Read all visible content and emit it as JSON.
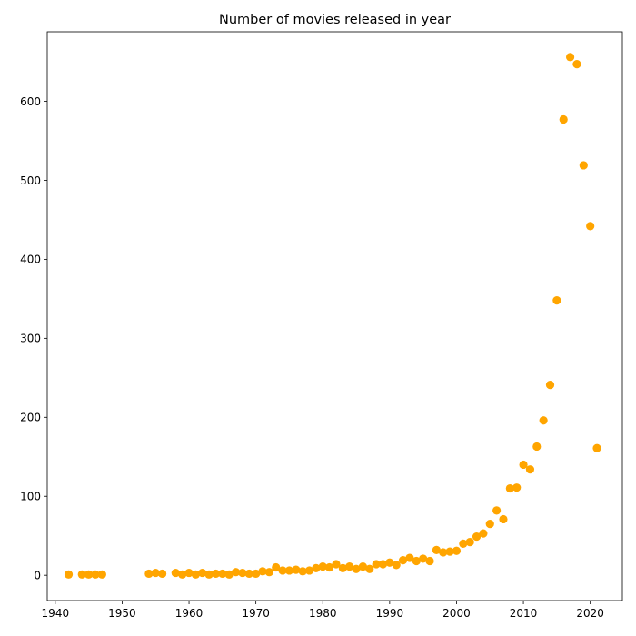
{
  "chart_data": {
    "type": "scatter",
    "title": "Number of movies released in year",
    "xlabel": "",
    "ylabel": "",
    "xlim": [
      1938.8,
      2024.8
    ],
    "ylim": [
      -32,
      688
    ],
    "x_ticks": [
      1940,
      1950,
      1960,
      1970,
      1980,
      1990,
      2000,
      2010,
      2020
    ],
    "y_ticks": [
      0,
      100,
      200,
      300,
      400,
      500,
      600
    ],
    "grid": false,
    "legend": "none",
    "marker_color": "#ffa500",
    "points": [
      [
        1942,
        1
      ],
      [
        1944,
        1
      ],
      [
        1945,
        1
      ],
      [
        1946,
        1
      ],
      [
        1947,
        1
      ],
      [
        1954,
        2
      ],
      [
        1955,
        3
      ],
      [
        1956,
        2
      ],
      [
        1958,
        3
      ],
      [
        1959,
        1
      ],
      [
        1960,
        3
      ],
      [
        1961,
        1
      ],
      [
        1962,
        3
      ],
      [
        1963,
        1
      ],
      [
        1964,
        2
      ],
      [
        1965,
        2
      ],
      [
        1966,
        1
      ],
      [
        1967,
        4
      ],
      [
        1968,
        3
      ],
      [
        1969,
        2
      ],
      [
        1970,
        2
      ],
      [
        1971,
        5
      ],
      [
        1972,
        4
      ],
      [
        1973,
        10
      ],
      [
        1974,
        6
      ],
      [
        1975,
        6
      ],
      [
        1976,
        7
      ],
      [
        1977,
        5
      ],
      [
        1978,
        6
      ],
      [
        1979,
        9
      ],
      [
        1980,
        11
      ],
      [
        1981,
        10
      ],
      [
        1982,
        14
      ],
      [
        1983,
        9
      ],
      [
        1984,
        11
      ],
      [
        1985,
        8
      ],
      [
        1986,
        11
      ],
      [
        1987,
        8
      ],
      [
        1988,
        14
      ],
      [
        1989,
        14
      ],
      [
        1990,
        16
      ],
      [
        1991,
        13
      ],
      [
        1992,
        19
      ],
      [
        1993,
        22
      ],
      [
        1994,
        18
      ],
      [
        1995,
        21
      ],
      [
        1996,
        18
      ],
      [
        1997,
        32
      ],
      [
        1998,
        29
      ],
      [
        1999,
        30
      ],
      [
        2000,
        31
      ],
      [
        2001,
        40
      ],
      [
        2002,
        42
      ],
      [
        2003,
        49
      ],
      [
        2004,
        53
      ],
      [
        2005,
        65
      ],
      [
        2006,
        82
      ],
      [
        2007,
        71
      ],
      [
        2008,
        110
      ],
      [
        2009,
        111
      ],
      [
        2010,
        140
      ],
      [
        2011,
        134
      ],
      [
        2012,
        163
      ],
      [
        2013,
        196
      ],
      [
        2014,
        241
      ],
      [
        2015,
        348
      ],
      [
        2016,
        577
      ],
      [
        2017,
        656
      ],
      [
        2018,
        647
      ],
      [
        2019,
        519
      ],
      [
        2020,
        442
      ],
      [
        2021,
        161
      ]
    ]
  }
}
